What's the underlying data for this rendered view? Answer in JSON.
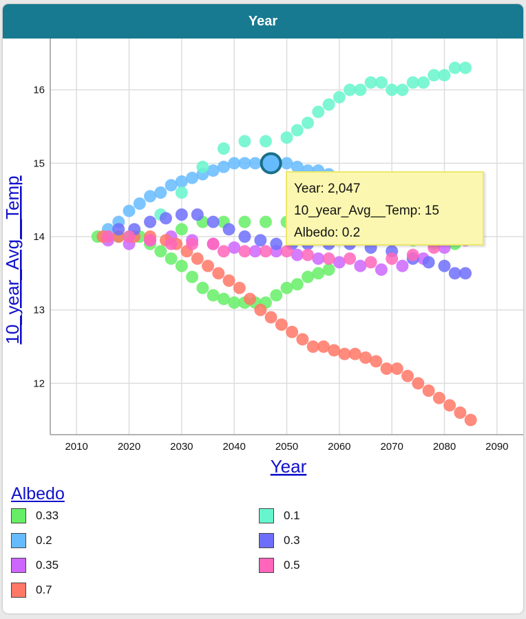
{
  "window": {
    "title": "Year"
  },
  "chart_data": {
    "type": "scatter",
    "xlabel": "Year",
    "ylabel": "10_year_Avg__Temp",
    "xlim": [
      2005,
      2095
    ],
    "ylim": [
      11.3,
      16.7
    ],
    "x_ticks": [
      2010,
      2020,
      2030,
      2040,
      2050,
      2060,
      2070,
      2080,
      2090
    ],
    "y_ticks": [
      12,
      13,
      14,
      15,
      16
    ],
    "grid": true,
    "legend": {
      "title": "Albedo",
      "position": "bottom"
    },
    "series": [
      {
        "name": "0.33",
        "color": "#66ee66",
        "x": [
          2014,
          2016,
          2018,
          2020,
          2022,
          2024,
          2026,
          2028,
          2030,
          2032,
          2034,
          2036,
          2038,
          2040,
          2042,
          2044,
          2046,
          2048,
          2050,
          2052,
          2054,
          2056,
          2058
        ],
        "y": [
          14.0,
          14.0,
          14.0,
          14.0,
          14.0,
          13.9,
          13.8,
          13.7,
          13.6,
          13.45,
          13.3,
          13.2,
          13.15,
          13.1,
          13.1,
          13.1,
          13.1,
          13.2,
          13.3,
          13.35,
          13.45,
          13.5,
          13.55
        ]
      },
      {
        "name": "0.33",
        "color": "#66ee66",
        "x": [
          2030,
          2034,
          2038,
          2042,
          2046,
          2050,
          2054,
          2058,
          2062,
          2066,
          2070,
          2074,
          2078,
          2082
        ],
        "y": [
          14.1,
          14.2,
          14.2,
          14.2,
          14.2,
          14.2,
          14.1,
          14.0,
          14.0,
          14.0,
          14.0,
          13.95,
          13.9,
          13.9
        ]
      },
      {
        "name": "0.2",
        "color": "#66bbff",
        "x": [
          2016,
          2018,
          2020,
          2022,
          2024,
          2026,
          2028,
          2030,
          2032,
          2034,
          2036,
          2038,
          2040,
          2042,
          2044,
          2046,
          2047,
          2048,
          2050,
          2052,
          2054,
          2056,
          2058,
          2062,
          2066,
          2070
        ],
        "y": [
          14.1,
          14.2,
          14.35,
          14.45,
          14.55,
          14.6,
          14.7,
          14.75,
          14.8,
          14.85,
          14.9,
          14.95,
          15.0,
          15.0,
          15.0,
          15.0,
          15.0,
          15.0,
          15.0,
          14.95,
          14.9,
          14.9,
          14.85,
          14.8,
          14.8,
          14.75
        ]
      },
      {
        "name": "0.35",
        "color": "#cc66ff",
        "x": [
          2016,
          2020,
          2024,
          2028,
          2032,
          2036,
          2040,
          2044,
          2048,
          2052,
          2056,
          2060,
          2064,
          2068,
          2072,
          2076,
          2080,
          2084
        ],
        "y": [
          13.95,
          13.9,
          13.95,
          14.0,
          13.95,
          13.9,
          13.85,
          13.8,
          13.8,
          13.75,
          13.7,
          13.65,
          13.6,
          13.55,
          13.6,
          13.7,
          13.85,
          13.95
        ]
      },
      {
        "name": "0.7",
        "color": "#ff7766",
        "x": [
          2015,
          2018,
          2021,
          2024,
          2027,
          2029,
          2031,
          2033,
          2035,
          2037,
          2039,
          2041,
          2043,
          2045,
          2047,
          2049,
          2051,
          2053,
          2055,
          2057,
          2059,
          2061,
          2063,
          2065,
          2067,
          2069,
          2071,
          2073,
          2075,
          2077,
          2079,
          2081,
          2083,
          2085
        ],
        "y": [
          14.0,
          14.0,
          14.0,
          14.0,
          13.95,
          13.9,
          13.8,
          13.7,
          13.6,
          13.5,
          13.4,
          13.3,
          13.15,
          13.0,
          12.9,
          12.8,
          12.7,
          12.6,
          12.5,
          12.5,
          12.45,
          12.4,
          12.4,
          12.35,
          12.3,
          12.2,
          12.2,
          12.1,
          12.0,
          11.9,
          11.8,
          11.7,
          11.6,
          11.5
        ]
      },
      {
        "name": "0.1",
        "color": "#66f5cc",
        "x": [
          2026,
          2030,
          2034,
          2038,
          2042,
          2046,
          2050,
          2052,
          2054,
          2056,
          2058,
          2060,
          2062,
          2064,
          2066,
          2068,
          2070,
          2072,
          2074,
          2076,
          2078,
          2080,
          2082,
          2084
        ],
        "y": [
          14.3,
          14.6,
          14.95,
          15.2,
          15.3,
          15.3,
          15.35,
          15.45,
          15.55,
          15.7,
          15.8,
          15.9,
          16.0,
          16.0,
          16.1,
          16.1,
          16.0,
          16.0,
          16.1,
          16.1,
          16.2,
          16.2,
          16.3,
          16.3
        ]
      },
      {
        "name": "0.1",
        "color": "#66f5cc",
        "x": [
          2056,
          2060,
          2064,
          2068,
          2072,
          2076,
          2080,
          2084
        ],
        "y": [
          14.8,
          14.8,
          14.8,
          14.8,
          14.7,
          14.7,
          14.7,
          14.7
        ]
      },
      {
        "name": "0.3",
        "color": "#6e6efc",
        "x": [
          2018,
          2021,
          2024,
          2027,
          2030,
          2033,
          2036,
          2039,
          2042,
          2045,
          2048,
          2051,
          2054,
          2058,
          2062,
          2066,
          2070,
          2074,
          2077,
          2080,
          2082,
          2084
        ],
        "y": [
          14.1,
          14.1,
          14.2,
          14.25,
          14.3,
          14.3,
          14.2,
          14.1,
          14.0,
          13.95,
          13.9,
          13.9,
          13.9,
          13.9,
          13.9,
          13.85,
          13.8,
          13.7,
          13.65,
          13.6,
          13.5,
          13.5
        ]
      },
      {
        "name": "0.5",
        "color": "#ff66bb",
        "x": [
          2016,
          2020,
          2024,
          2028,
          2032,
          2036,
          2038,
          2042,
          2046,
          2050,
          2054,
          2058,
          2062,
          2066,
          2070,
          2074,
          2078
        ],
        "y": [
          14.0,
          14.0,
          13.95,
          13.9,
          13.9,
          13.9,
          13.8,
          13.8,
          13.8,
          13.8,
          13.75,
          13.7,
          13.7,
          13.65,
          13.7,
          13.75,
          13.85
        ]
      }
    ],
    "highlight": {
      "x": 2047,
      "y": 15,
      "color": "#66bbff"
    },
    "tooltip": {
      "lines": [
        "Year: 2,047",
        "10_year_Avg__Temp: 15",
        "Albedo: 0.2"
      ]
    },
    "legend_items": [
      {
        "label": "0.33",
        "color": "#66ee66"
      },
      {
        "label": "0.1",
        "color": "#66f5cc"
      },
      {
        "label": "0.2",
        "color": "#66bbff"
      },
      {
        "label": "0.3",
        "color": "#6e6efc"
      },
      {
        "label": "0.35",
        "color": "#cc66ff"
      },
      {
        "label": "0.5",
        "color": "#ff66bb"
      },
      {
        "label": "0.7",
        "color": "#ff7766"
      }
    ]
  }
}
